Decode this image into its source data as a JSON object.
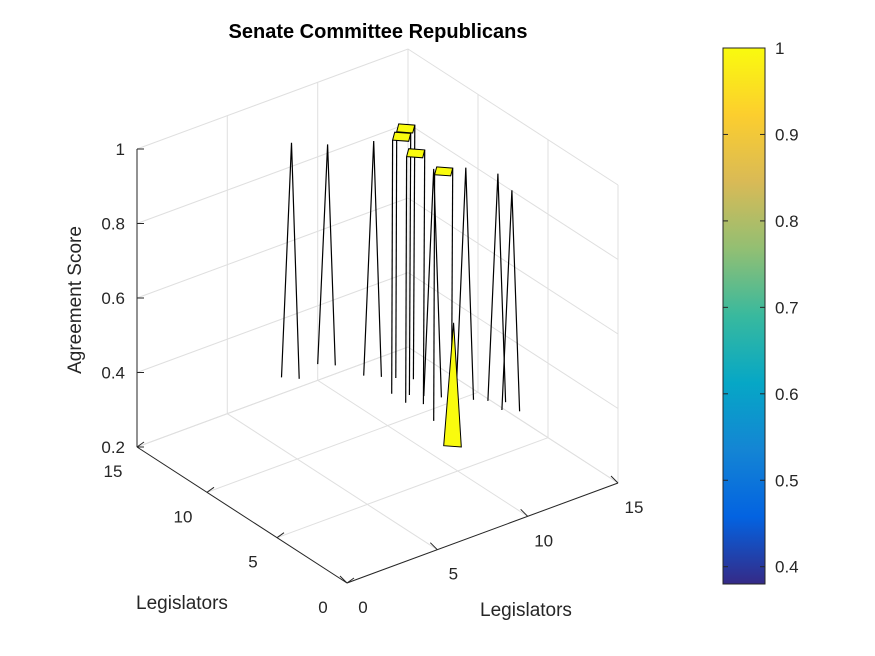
{
  "colors": {
    "high": "#f9fb0e",
    "colormap": [
      "#352a87",
      "#0363e1",
      "#1485d4",
      "#06a7c6",
      "#38b99e",
      "#92bf73",
      "#d9ba56",
      "#fcce2e",
      "#f9fb0e"
    ]
  },
  "chart_data": {
    "type": "surface",
    "title": "Senate Committee Republicans",
    "xlabel": "Legislators",
    "ylabel": "Legislators",
    "zlabel": "Agreement Score",
    "xlim": [
      0,
      15
    ],
    "ylim": [
      0,
      15
    ],
    "zlim": [
      0.2,
      1
    ],
    "xticks": [
      "0",
      "5",
      "10",
      "15"
    ],
    "yticks": [
      "0",
      "5",
      "10",
      "15"
    ],
    "zticks": [
      "0.2",
      "0.4",
      "0.6",
      "0.8",
      "1"
    ],
    "grid": true,
    "colorbar": {
      "ticks": [
        "0.4",
        "0.5",
        "0.6",
        "0.7",
        "0.8",
        "0.9",
        "1"
      ],
      "range": [
        0.38,
        1.0
      ]
    },
    "points": [
      {
        "x": 7,
        "y": 13,
        "z": 0.94
      },
      {
        "x": 9,
        "y": 13,
        "z": 0.9
      },
      {
        "x": 10,
        "y": 11,
        "z": 0.94
      },
      {
        "x": 11,
        "y": 10,
        "z": 0.98
      },
      {
        "x": 11,
        "y": 8,
        "z": 0.92
      },
      {
        "x": 12,
        "y": 7,
        "z": 0.93
      },
      {
        "x": 13,
        "y": 5,
        "z": 0.9
      },
      {
        "x": 13,
        "y": 6,
        "z": 0.92
      },
      {
        "x": 10,
        "y": 9,
        "z": 1.0
      },
      {
        "x": 10,
        "y": 8,
        "z": 0.98
      },
      {
        "x": 10,
        "y": 6,
        "z": 0.98
      },
      {
        "x": 9,
        "y": 4,
        "z": 0.64
      }
    ]
  }
}
